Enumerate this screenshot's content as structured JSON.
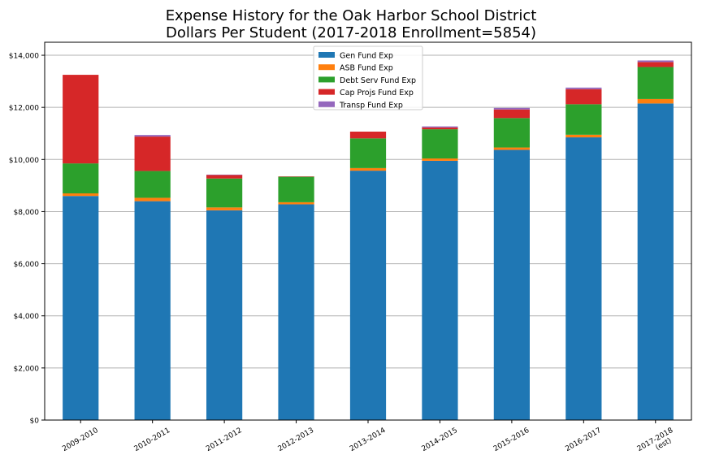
{
  "chart_data": {
    "type": "bar",
    "stacked": true,
    "title": "Expense History for the Oak Harbor School District",
    "subtitle": "Dollars Per Student (2017-2018 Enrollment=5854)",
    "xlabel": "",
    "ylabel": "",
    "categories": [
      "2009-2010",
      "2010-2011",
      "2011-2012",
      "2012-2013",
      "2013-2014",
      "2014-2015",
      "2015-2016",
      "2016-2017",
      "2017-2018 (est)"
    ],
    "category_label_lines": [
      [
        "2009-2010"
      ],
      [
        "2010-2011"
      ],
      [
        "2011-2012"
      ],
      [
        "2012-2013"
      ],
      [
        "2013-2014"
      ],
      [
        "2014-2015"
      ],
      [
        "2015-2016"
      ],
      [
        "2016-2017"
      ],
      [
        "2017-2018",
        "(est)"
      ]
    ],
    "series": [
      {
        "name": "Gen Fund Exp",
        "color": "#1f77b4",
        "values": [
          8600,
          8400,
          8050,
          8280,
          9570,
          9950,
          10370,
          10850,
          12150
        ]
      },
      {
        "name": "ASB Fund Exp",
        "color": "#ff7f0e",
        "values": [
          100,
          130,
          110,
          80,
          100,
          90,
          90,
          100,
          170
        ]
      },
      {
        "name": "Debt Serv Fund Exp",
        "color": "#2ca02c",
        "values": [
          1150,
          1030,
          1110,
          980,
          1140,
          1120,
          1130,
          1170,
          1230
        ]
      },
      {
        "name": "Cap Projs Fund Exp",
        "color": "#d62728",
        "values": [
          3400,
          1320,
          140,
          10,
          260,
          70,
          330,
          580,
          190
        ]
      },
      {
        "name": "Transp Fund Exp",
        "color": "#9467bd",
        "values": [
          0,
          60,
          10,
          0,
          0,
          40,
          60,
          60,
          60
        ]
      }
    ],
    "yticks": [
      0,
      2000,
      4000,
      6000,
      8000,
      10000,
      12000,
      14000
    ],
    "ytick_labels": [
      "$0",
      "$2,000",
      "$4,000",
      "$6,000",
      "$8,000",
      "$10,000",
      "$12,000",
      "$14,000"
    ],
    "ylim": [
      0,
      14500
    ],
    "grid": "y",
    "legend_position": "top-center"
  }
}
